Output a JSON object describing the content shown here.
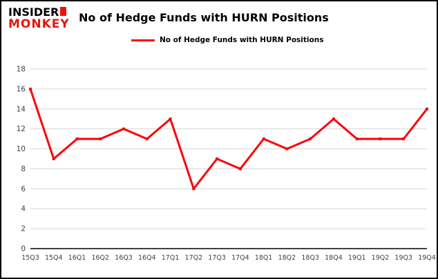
{
  "header": {
    "logo": {
      "line1": "INSIDER",
      "line2": "MONKEY"
    },
    "title": "No of Hedge Funds with HURN Positions"
  },
  "legend": {
    "label": "No of Hedge Funds with HURN Positions",
    "color": "#fb0007"
  },
  "chart_data": {
    "type": "line",
    "title": "No of Hedge Funds with HURN Positions",
    "categories": [
      "15Q3",
      "15Q4",
      "16Q1",
      "16Q2",
      "16Q3",
      "16Q4",
      "17Q1",
      "17Q2",
      "17Q3",
      "17Q4",
      "18Q1",
      "18Q2",
      "18Q3",
      "18Q4",
      "19Q1",
      "19Q2",
      "19Q3",
      "19Q4"
    ],
    "series": [
      {
        "name": "No of Hedge Funds with HURN Positions",
        "color": "#fb0007",
        "values": [
          16,
          9,
          11,
          11,
          12,
          11,
          13,
          6,
          9,
          8,
          11,
          10,
          11,
          13,
          11,
          11,
          11,
          14
        ]
      }
    ],
    "ylim": [
      0,
      18
    ],
    "ytick_step": 2,
    "grid": true,
    "legend_position": "top-left",
    "xlabel": "",
    "ylabel": ""
  },
  "colors": {
    "accent": "#fb0007",
    "grid": "#d6d6d6",
    "axis": "#000000",
    "tick_text": "#3f3f3f",
    "logo_red": "#e8140c"
  }
}
